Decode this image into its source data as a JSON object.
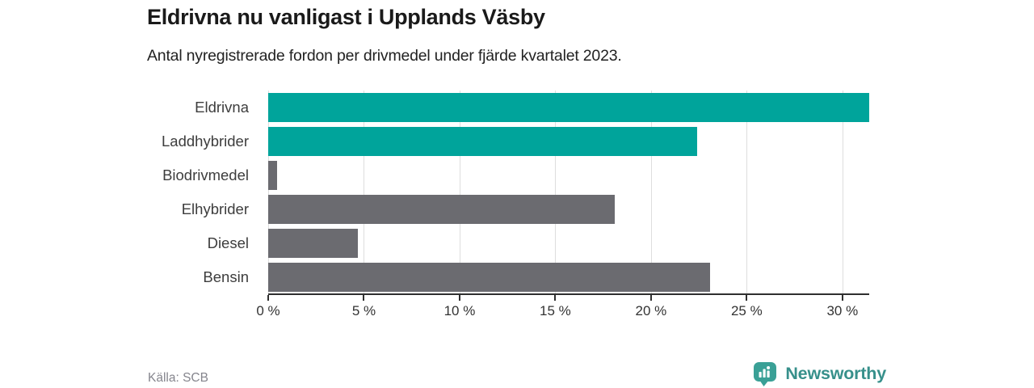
{
  "header": {
    "title": "Eldrivna nu vanligast i Upplands Väsby",
    "subtitle": "Antal nyregistrerade fordon per drivmedel under fjärde kvartalet 2023."
  },
  "chart_data": {
    "type": "bar",
    "orientation": "horizontal",
    "title": "Eldrivna nu vanligast i Upplands Väsby",
    "subtitle": "Antal nyregistrerade fordon per drivmedel under fjärde kvartalet 2023.",
    "categories": [
      "Eldrivna",
      "Laddhybrider",
      "Biodrivmedel",
      "Elhybrider",
      "Diesel",
      "Bensin"
    ],
    "values": [
      31.4,
      22.4,
      0.45,
      18.1,
      4.7,
      23.1
    ],
    "unit": "%",
    "xlim": [
      0,
      31.4
    ],
    "xticks": [
      0,
      5,
      10,
      15,
      20,
      25,
      30
    ],
    "xtick_suffix": " %",
    "grid": true,
    "gridline_color": "#dedede",
    "axis_color": "#2f2f2f",
    "bar_colors": [
      "#00a49b",
      "#00a49b",
      "#6b6b70",
      "#6b6b70",
      "#6b6b70",
      "#6b6b70"
    ]
  },
  "colors": {
    "accent_teal": "#00a49b",
    "neutral_gray": "#6b6b70",
    "brand_teal": "#37908b",
    "brand_icon_teal": "#3aa096"
  },
  "footer": {
    "source": "Källa: SCB",
    "brand_name": "Newsworthy"
  }
}
